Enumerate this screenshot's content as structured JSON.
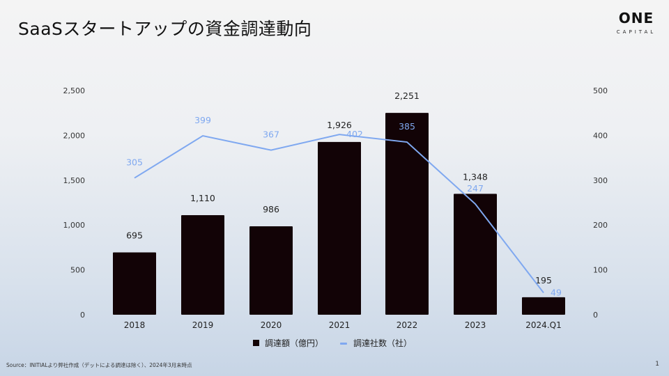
{
  "slide": {
    "title": "SaaSスタートアップの資金調達動向",
    "logo": {
      "line1": "ONE",
      "line2": "CAPITAL"
    },
    "source": "Source：INITIALより弊社作成（デットによる調達は除く）、2024年3月末時点",
    "page_number": "1"
  },
  "chart_data": {
    "type": "bar",
    "categories": [
      "2018",
      "2019",
      "2020",
      "2021",
      "2022",
      "2023",
      "2024.Q1"
    ],
    "series": [
      {
        "name": "調達額（億円）",
        "type": "bar",
        "axis": "left",
        "color": "#120306",
        "values": [
          695,
          1110,
          986,
          1926,
          2251,
          1348,
          195
        ],
        "labels": [
          "695",
          "1,110",
          "986",
          "1,926",
          "2,251",
          "1,348",
          "195"
        ]
      },
      {
        "name": "調達社数（社）",
        "type": "line",
        "axis": "right",
        "color": "#7fa8f0",
        "values": [
          305,
          399,
          367,
          402,
          385,
          247,
          49
        ],
        "labels": [
          "305",
          "399",
          "367",
          "402",
          "385",
          "247",
          "49"
        ]
      }
    ],
    "y_left": {
      "lim": [
        0,
        2500
      ],
      "ticks": [
        "0",
        "500",
        "1,000",
        "1,500",
        "2,000",
        "2,500"
      ]
    },
    "y_right": {
      "lim": [
        0,
        500
      ],
      "ticks": [
        "0",
        "100",
        "200",
        "300",
        "400",
        "500"
      ]
    },
    "grid": false,
    "legend": "bottom"
  }
}
